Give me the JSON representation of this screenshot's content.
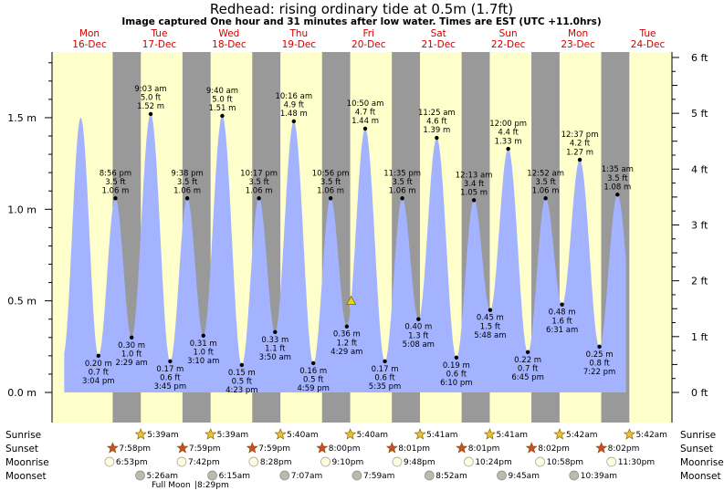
{
  "chart_data": {
    "type": "area",
    "title": "Redhead: rising  ordinary tide at 0.5m (1.7ft)",
    "subtitle": "Image captured One hour and 31 minutes after low water. Times are EST (UTC +11.0hrs)",
    "ylim": [
      -0.17,
      1.82
    ],
    "left_ticks": [
      "1.5 m",
      "1.0 m",
      "0.5 m",
      "0.0 m"
    ],
    "left_tick_values": [
      1.5,
      1.0,
      0.5,
      0.0
    ],
    "right_ticks": [
      "6 ft",
      "5 ft",
      "4 ft",
      "3 ft",
      "2 ft",
      "1 ft",
      "0 ft"
    ],
    "days": [
      {
        "dow": "Mon",
        "date": "16-Dec"
      },
      {
        "dow": "Tue",
        "date": "17-Dec"
      },
      {
        "dow": "Wed",
        "date": "18-Dec"
      },
      {
        "dow": "Thu",
        "date": "19-Dec"
      },
      {
        "dow": "Fri",
        "date": "20-Dec"
      },
      {
        "dow": "Sat",
        "date": "21-Dec"
      },
      {
        "dow": "Sun",
        "date": "22-Dec"
      },
      {
        "dow": "Mon",
        "date": "23-Dec"
      },
      {
        "dow": "Tue",
        "date": "24-Dec"
      }
    ],
    "tides": [
      {
        "day": 0,
        "time": "3:04 pm",
        "t": 15.07,
        "m": 0.2,
        "ft": "0.7 ft",
        "m_label": "0.20 m",
        "type": "low"
      },
      {
        "day": 0,
        "time": "8:56 pm",
        "t": 20.93,
        "m": 1.06,
        "ft": "3.5 ft",
        "m_label": "1.06 m",
        "type": "high"
      },
      {
        "day": 1,
        "time": "2:29 am",
        "t": 26.48,
        "m": 0.3,
        "ft": "1.0 ft",
        "m_label": "0.30 m",
        "type": "low"
      },
      {
        "day": 1,
        "time": "9:03 am",
        "t": 33.05,
        "m": 1.52,
        "ft": "5.0 ft",
        "m_label": "1.52 m",
        "type": "high"
      },
      {
        "day": 1,
        "time": "3:45 pm",
        "t": 39.75,
        "m": 0.17,
        "ft": "0.6 ft",
        "m_label": "0.17 m",
        "type": "low"
      },
      {
        "day": 1,
        "time": "9:38 pm",
        "t": 45.63,
        "m": 1.06,
        "ft": "3.5 ft",
        "m_label": "1.06 m",
        "type": "high"
      },
      {
        "day": 2,
        "time": "3:10 am",
        "t": 51.17,
        "m": 0.31,
        "ft": "1.0 ft",
        "m_label": "0.31 m",
        "type": "low"
      },
      {
        "day": 2,
        "time": "9:40 am",
        "t": 57.67,
        "m": 1.51,
        "ft": "5.0 ft",
        "m_label": "1.51 m",
        "type": "high"
      },
      {
        "day": 2,
        "time": "4:23 pm",
        "t": 64.38,
        "m": 0.15,
        "ft": "0.5 ft",
        "m_label": "0.15 m",
        "type": "low"
      },
      {
        "day": 2,
        "time": "10:17 pm",
        "t": 70.28,
        "m": 1.06,
        "ft": "3.5 ft",
        "m_label": "1.06 m",
        "type": "high"
      },
      {
        "day": 3,
        "time": "3:50 am",
        "t": 75.83,
        "m": 0.33,
        "ft": "1.1 ft",
        "m_label": "0.33 m",
        "type": "low"
      },
      {
        "day": 3,
        "time": "10:16 am",
        "t": 82.27,
        "m": 1.48,
        "ft": "4.9 ft",
        "m_label": "1.48 m",
        "type": "high"
      },
      {
        "day": 3,
        "time": "4:59 pm",
        "t": 88.98,
        "m": 0.16,
        "ft": "0.5 ft",
        "m_label": "0.16 m",
        "type": "low"
      },
      {
        "day": 3,
        "time": "10:56 pm",
        "t": 94.93,
        "m": 1.06,
        "ft": "3.5 ft",
        "m_label": "1.06 m",
        "type": "high"
      },
      {
        "day": 4,
        "time": "4:29 am",
        "t": 100.48,
        "m": 0.36,
        "ft": "1.2 ft",
        "m_label": "0.36 m",
        "type": "low"
      },
      {
        "day": 4,
        "time": "10:50 am",
        "t": 106.83,
        "m": 1.44,
        "ft": "4.7 ft",
        "m_label": "1.44 m",
        "type": "high"
      },
      {
        "day": 4,
        "time": "5:35 pm",
        "t": 113.58,
        "m": 0.17,
        "ft": "0.6 ft",
        "m_label": "0.17 m",
        "type": "low"
      },
      {
        "day": 4,
        "time": "11:35 pm",
        "t": 119.58,
        "m": 1.06,
        "ft": "3.5 ft",
        "m_label": "1.06 m",
        "type": "high"
      },
      {
        "day": 5,
        "time": "5:08 am",
        "t": 125.13,
        "m": 0.4,
        "ft": "1.3 ft",
        "m_label": "0.40 m",
        "type": "low"
      },
      {
        "day": 5,
        "time": "11:25 am",
        "t": 131.42,
        "m": 1.39,
        "ft": "4.6 ft",
        "m_label": "1.39 m",
        "type": "high"
      },
      {
        "day": 5,
        "time": "6:10 pm",
        "t": 138.17,
        "m": 0.19,
        "ft": "0.6 ft",
        "m_label": "0.19 m",
        "type": "low"
      },
      {
        "day": 6,
        "time": "12:13 am",
        "t": 144.22,
        "m": 1.05,
        "ft": "3.4 ft",
        "m_label": "1.05 m",
        "type": "high"
      },
      {
        "day": 6,
        "time": "5:48 am",
        "t": 149.8,
        "m": 0.45,
        "ft": "1.5 ft",
        "m_label": "0.45 m",
        "type": "low"
      },
      {
        "day": 6,
        "time": "12:00 pm",
        "t": 156.0,
        "m": 1.33,
        "ft": "4.4 ft",
        "m_label": "1.33 m",
        "type": "high"
      },
      {
        "day": 6,
        "time": "6:45 pm",
        "t": 162.75,
        "m": 0.22,
        "ft": "0.7 ft",
        "m_label": "0.22 m",
        "type": "low"
      },
      {
        "day": 7,
        "time": "12:52 am",
        "t": 168.87,
        "m": 1.06,
        "ft": "3.5 ft",
        "m_label": "1.06 m",
        "type": "high"
      },
      {
        "day": 7,
        "time": "6:31 am",
        "t": 174.52,
        "m": 0.48,
        "ft": "1.6 ft",
        "m_label": "0.48 m",
        "type": "low"
      },
      {
        "day": 7,
        "time": "12:37 pm",
        "t": 180.62,
        "m": 1.27,
        "ft": "4.2 ft",
        "m_label": "1.27 m",
        "type": "high"
      },
      {
        "day": 7,
        "time": "7:22 pm",
        "t": 187.37,
        "m": 0.25,
        "ft": "0.8 ft",
        "m_label": "0.25 m",
        "type": "low"
      },
      {
        "day": 8,
        "time": "1:35 am",
        "t": 193.58,
        "m": 1.08,
        "ft": "3.5 ft",
        "m_label": "1.08 m",
        "type": "high"
      }
    ],
    "first_peak_m": 1.5,
    "current_marker": {
      "t": 102.0,
      "m": 0.5
    },
    "row_labels": [
      "Sunrise",
      "Sunset",
      "Moonrise",
      "Moonset"
    ],
    "sunrise": [
      "5:39am",
      "5:39am",
      "5:40am",
      "5:40am",
      "5:41am",
      "5:41am",
      "5:42am",
      "5:42am"
    ],
    "sunset": [
      "7:58pm",
      "7:59pm",
      "7:59pm",
      "8:00pm",
      "8:01pm",
      "8:01pm",
      "8:02pm",
      "8:02pm"
    ],
    "moonrise": [
      "6:53pm",
      "7:42pm",
      "8:28pm",
      "9:10pm",
      "9:48pm",
      "10:24pm",
      "10:58pm",
      "11:30pm"
    ],
    "moonset": [
      "5:26am",
      "6:15am",
      "7:07am",
      "7:59am",
      "8:52am",
      "9:45am",
      "10:39am"
    ],
    "full_moon": "Full Moon",
    "full_moon_time": "8:29pm",
    "colors": {
      "day": "#ffffcc",
      "night": "#999999",
      "water": "#a3b3ff",
      "day_label": "#d00000",
      "sunrise_star": "#e8c23a",
      "sunset_star": "#d04a2a",
      "moonrise": "#ffffdd",
      "moonset": "#bbbbaa"
    }
  }
}
